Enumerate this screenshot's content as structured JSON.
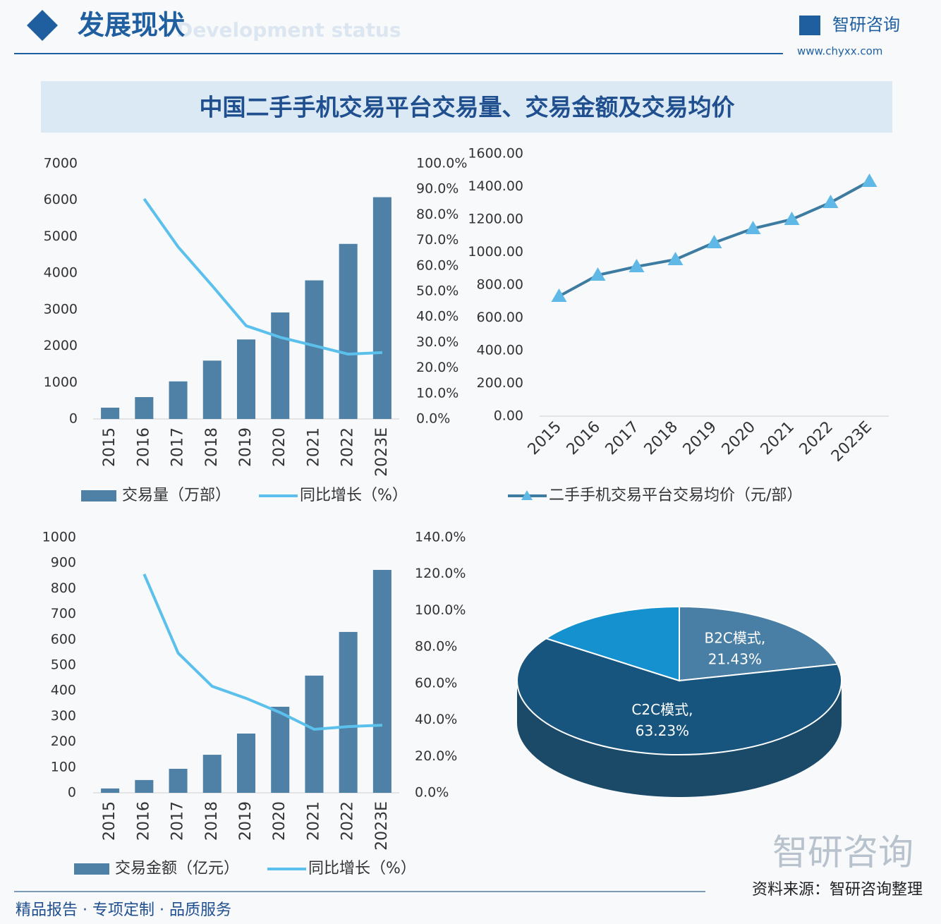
{
  "header": {
    "title": "发展现状",
    "subtitle": "Development status",
    "brand": "智研咨询",
    "url": "www.chyxx.com",
    "main_title": "中国二手手机交易平台交易量、交易金额及交易均价"
  },
  "footer": {
    "slogan": "精品报告 · 专项定制 · 品质服务",
    "source": "资料来源：智研咨询整理"
  },
  "chart_data": [
    {
      "type": "combo",
      "categories": [
        "2015",
        "2016",
        "2017",
        "2018",
        "2019",
        "2020",
        "2021",
        "2022",
        "2023E"
      ],
      "series": [
        {
          "name": "交易量（万部）",
          "kind": "bar",
          "color": "#4f81a6",
          "values": [
            310,
            600,
            1030,
            1600,
            2180,
            2920,
            3800,
            4800,
            6080
          ]
        },
        {
          "name": "同比增长（%）",
          "kind": "line",
          "axis": "y2",
          "color": "#5bc0eb",
          "values": [
            null,
            86.2,
            67.4,
            52.2,
            36.5,
            32,
            28.7,
            25.4,
            26
          ]
        }
      ],
      "ylim": [
        0,
        7000
      ],
      "yticks": [
        0,
        1000,
        2000,
        3000,
        4000,
        5000,
        6000,
        7000
      ],
      "y2lim": [
        0,
        100
      ],
      "y2ticks": [
        {
          "value": 0,
          "label": "0.0%"
        },
        {
          "value": 10,
          "label": "10.0%"
        },
        {
          "value": 20,
          "label": "20.0%"
        },
        {
          "value": 30,
          "label": "30.0%"
        },
        {
          "value": 40,
          "label": "40.0%"
        },
        {
          "value": 50,
          "label": "50.0%"
        },
        {
          "value": 60,
          "label": "60.0%"
        },
        {
          "value": 70,
          "label": "70.0%"
        },
        {
          "value": 80,
          "label": "80.0%"
        },
        {
          "value": 90,
          "label": "90.0%"
        },
        {
          "value": 100,
          "label": "100.0%"
        }
      ]
    },
    {
      "type": "line",
      "categories": [
        "2015",
        "2016",
        "2017",
        "2018",
        "2019",
        "2020",
        "2021",
        "2022",
        "2023E"
      ],
      "series": [
        {
          "name": "二手手机交易平台交易均价（元/部）",
          "kind": "line",
          "marker": "triangle",
          "color": "#3e7ba0",
          "marker_color": "#5fb8e6",
          "values": [
            731,
            860,
            912,
            955,
            1058,
            1144,
            1200,
            1303,
            1432
          ]
        }
      ],
      "ylim": [
        0,
        1600
      ],
      "yticks": [
        {
          "value": 0,
          "label": "0.00"
        },
        {
          "value": 200,
          "label": "200.00"
        },
        {
          "value": 400,
          "label": "400.00"
        },
        {
          "value": 600,
          "label": "600.00"
        },
        {
          "value": 800,
          "label": "800.00"
        },
        {
          "value": 1000,
          "label": "1000.00"
        },
        {
          "value": 1200,
          "label": "1200.00"
        },
        {
          "value": 1400,
          "label": "1400.00"
        },
        {
          "value": 1600,
          "label": "1600.00"
        }
      ]
    },
    {
      "type": "combo",
      "categories": [
        "2015",
        "2016",
        "2017",
        "2018",
        "2019",
        "2020",
        "2021",
        "2022",
        "2023E"
      ],
      "series": [
        {
          "name": "交易金额（亿元）",
          "kind": "bar",
          "color": "#4f81a6",
          "values": [
            17,
            50,
            94,
            149,
            232,
            337,
            459,
            630,
            873
          ]
        },
        {
          "name": "同比增长（%）",
          "kind": "line",
          "axis": "y2",
          "color": "#5bc0eb",
          "values": [
            null,
            119.9,
            76.6,
            58.4,
            51.8,
            44,
            34.8,
            36.3,
            37.1
          ]
        }
      ],
      "ylim": [
        0,
        1000
      ],
      "yticks": [
        0,
        100,
        200,
        300,
        400,
        500,
        600,
        700,
        800,
        900,
        1000
      ],
      "y2lim": [
        0,
        140
      ],
      "y2ticks": [
        {
          "value": 0,
          "label": "0.0%"
        },
        {
          "value": 20,
          "label": "20.0%"
        },
        {
          "value": 40,
          "label": "40.0%"
        },
        {
          "value": 60,
          "label": "60.0%"
        },
        {
          "value": 80,
          "label": "80.0%"
        },
        {
          "value": 100,
          "label": "100.0%"
        },
        {
          "value": 120,
          "label": "120.0%"
        },
        {
          "value": 140,
          "label": "140.0%"
        }
      ]
    },
    {
      "type": "pie",
      "categories": [
        "B2C模式,",
        "C2C模式,",
        null
      ],
      "values": [
        21.43,
        63.23,
        15.34
      ],
      "value_labels": [
        "21.43%",
        "63.23%",
        null
      ],
      "colors": [
        "#4a7fa5",
        "#17557f",
        "#1591cf"
      ]
    }
  ]
}
